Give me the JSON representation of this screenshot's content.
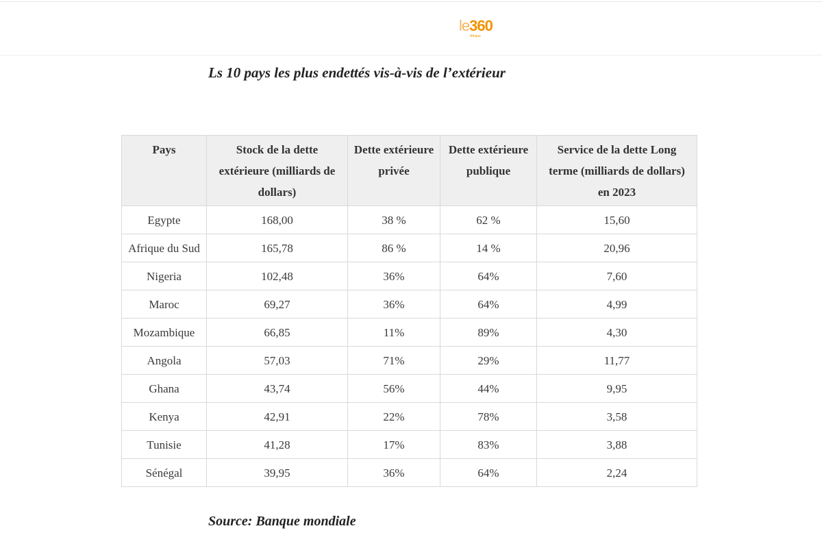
{
  "header": {
    "logo_le": "le",
    "logo_number": "360",
    "logo_sub": "Afrique"
  },
  "title": "Ls 10 pays les plus endettés vis-à-vis de l’extérieur",
  "table": {
    "headers": [
      "Pays",
      "Stock de la dette extérieure (milliards de dollars)",
      "Dette extérieure privée",
      "Dette extérieure publique",
      "Service de la dette Long terme (milliards de dollars) en 2023"
    ],
    "rows": [
      [
        "Egypte",
        "168,00",
        "38 %",
        "62 %",
        "15,60"
      ],
      [
        "Afrique du Sud",
        "165,78",
        "86 %",
        "14 %",
        "20,96"
      ],
      [
        "Nigeria",
        "102,48",
        "36%",
        "64%",
        "7,60"
      ],
      [
        "Maroc",
        "69,27",
        "36%",
        "64%",
        "4,99"
      ],
      [
        "Mozambique",
        "66,85",
        "11%",
        "89%",
        "4,30"
      ],
      [
        "Angola",
        "57,03",
        "71%",
        "29%",
        "11,77"
      ],
      [
        "Ghana",
        "43,74",
        "56%",
        "44%",
        "9,95"
      ],
      [
        "Kenya",
        "42,91",
        "22%",
        "78%",
        "3,58"
      ],
      [
        "Tunisie",
        "41,28",
        "17%",
        "83%",
        "3,88"
      ],
      [
        "Sénégal",
        "39,95",
        "36%",
        "64%",
        "2,24"
      ]
    ]
  },
  "source": "Source: Banque mondiale",
  "colors": {
    "brand_orange": "#f39200",
    "header_bg": "#efefef",
    "border": "#d9d9d9"
  }
}
